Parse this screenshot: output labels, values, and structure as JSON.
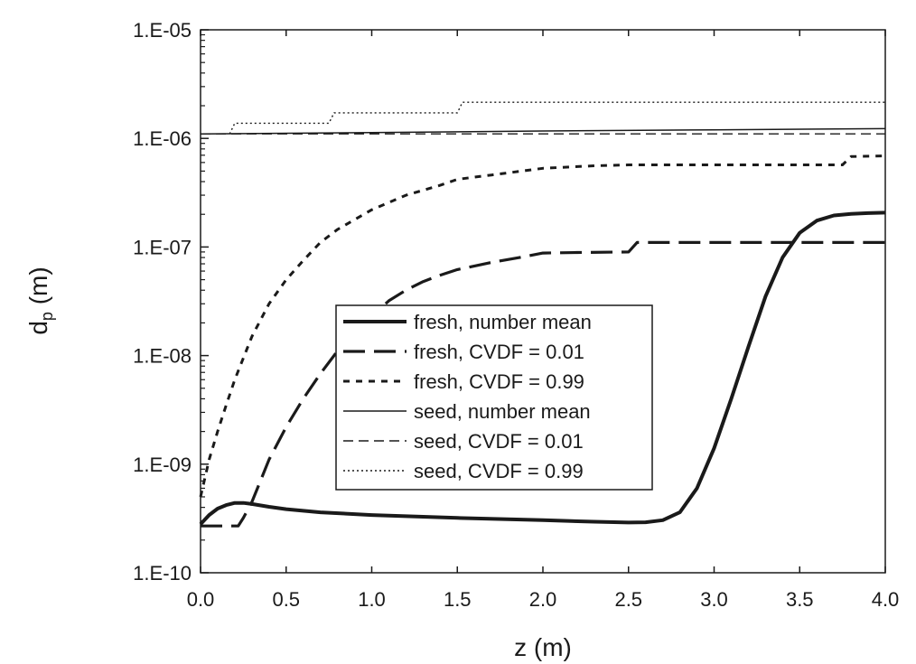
{
  "chart_data": {
    "type": "line",
    "xlabel": "z (m)",
    "ylabel_main": "d",
    "ylabel_sub": "p",
    "ylabel_unit": " (m)",
    "xlim": [
      0.0,
      4.0
    ],
    "ylim": [
      1e-10,
      1e-05
    ],
    "yscale": "log",
    "x_ticks": [
      "0.0",
      "0.5",
      "1.0",
      "1.5",
      "2.0",
      "2.5",
      "3.0",
      "3.5",
      "4.0"
    ],
    "y_ticks": [
      "1.E-10",
      "1.E-09",
      "1.E-08",
      "1.E-07",
      "1.E-06",
      "1.E-05"
    ],
    "grid": false,
    "legend_position": "center",
    "series": [
      {
        "name": "fresh, number mean",
        "style": "thick-solid",
        "x": [
          0.0,
          0.05,
          0.1,
          0.15,
          0.2,
          0.25,
          0.3,
          0.4,
          0.5,
          0.7,
          1.0,
          1.5,
          2.0,
          2.3,
          2.5,
          2.6,
          2.7,
          2.8,
          2.9,
          3.0,
          3.1,
          3.2,
          3.3,
          3.4,
          3.5,
          3.6,
          3.7,
          3.8,
          3.9,
          4.0
        ],
        "y": [
          2.8e-10,
          3.4e-10,
          3.9e-10,
          4.2e-10,
          4.4e-10,
          4.4e-10,
          4.3e-10,
          4.05e-10,
          3.85e-10,
          3.6e-10,
          3.4e-10,
          3.2e-10,
          3.05e-10,
          2.95e-10,
          2.9e-10,
          2.92e-10,
          3.05e-10,
          3.6e-10,
          6e-10,
          1.4e-09,
          4e-09,
          1.2e-08,
          3.5e-08,
          8e-08,
          1.35e-07,
          1.75e-07,
          1.95e-07,
          2.02e-07,
          2.05e-07,
          2.07e-07
        ]
      },
      {
        "name": "fresh, CVDF = 0.01",
        "style": "long-dash",
        "x": [
          0.0,
          0.22,
          0.25,
          0.3,
          0.35,
          0.4,
          0.5,
          0.6,
          0.7,
          0.8,
          0.9,
          1.0,
          1.1,
          1.2,
          1.3,
          1.4,
          1.5,
          1.7,
          1.9,
          2.0,
          2.2,
          2.5,
          2.55,
          2.6,
          3.0,
          3.5,
          4.0
        ],
        "y": [
          2.7e-10,
          2.7e-10,
          3.2e-10,
          4.5e-10,
          7e-10,
          1.1e-09,
          2.2e-09,
          4e-09,
          6.8e-09,
          1.1e-08,
          1.6e-08,
          2.3e-08,
          3.2e-08,
          4e-08,
          4.8e-08,
          5.5e-08,
          6.2e-08,
          7.2e-08,
          8.2e-08,
          8.8e-08,
          8.9e-08,
          9e-08,
          1.1e-07,
          1.1e-07,
          1.1e-07,
          1.1e-07,
          1.1e-07
        ]
      },
      {
        "name": "fresh, CVDF = 0.99",
        "style": "short-dash",
        "x": [
          0.0,
          0.05,
          0.1,
          0.15,
          0.2,
          0.3,
          0.4,
          0.5,
          0.6,
          0.7,
          0.8,
          1.0,
          1.2,
          1.4,
          1.5,
          1.7,
          2.0,
          2.3,
          2.5,
          3.0,
          3.5,
          3.75,
          3.8,
          4.0
        ],
        "y": [
          5e-10,
          1.1e-09,
          2e-09,
          3.5e-09,
          6e-09,
          1.5e-08,
          3e-08,
          5e-08,
          7.5e-08,
          1.1e-07,
          1.45e-07,
          2.2e-07,
          3e-07,
          3.7e-07,
          4.2e-07,
          4.6e-07,
          5.3e-07,
          5.6e-07,
          5.7e-07,
          5.7e-07,
          5.7e-07,
          5.7e-07,
          6.8e-07,
          6.9e-07
        ]
      },
      {
        "name": "seed, number mean",
        "style": "thin-solid",
        "x": [
          0.0,
          1.0,
          2.0,
          3.0,
          4.0
        ],
        "y": [
          1.1e-06,
          1.13e-06,
          1.17e-06,
          1.2e-06,
          1.23e-06
        ]
      },
      {
        "name": "seed, CVDF = 0.01",
        "style": "thin-dash",
        "x": [
          0.0,
          1.0,
          2.0,
          3.0,
          4.0
        ],
        "y": [
          1.1e-06,
          1.1e-06,
          1.1e-06,
          1.1e-06,
          1.1e-06
        ]
      },
      {
        "name": "seed, CVDF = 0.99",
        "style": "dotted",
        "x": [
          0.17,
          0.2,
          0.75,
          0.78,
          1.5,
          1.53,
          4.0
        ],
        "y": [
          1.1e-06,
          1.38e-06,
          1.38e-06,
          1.72e-06,
          1.72e-06,
          2.15e-06,
          2.15e-06
        ]
      }
    ]
  }
}
